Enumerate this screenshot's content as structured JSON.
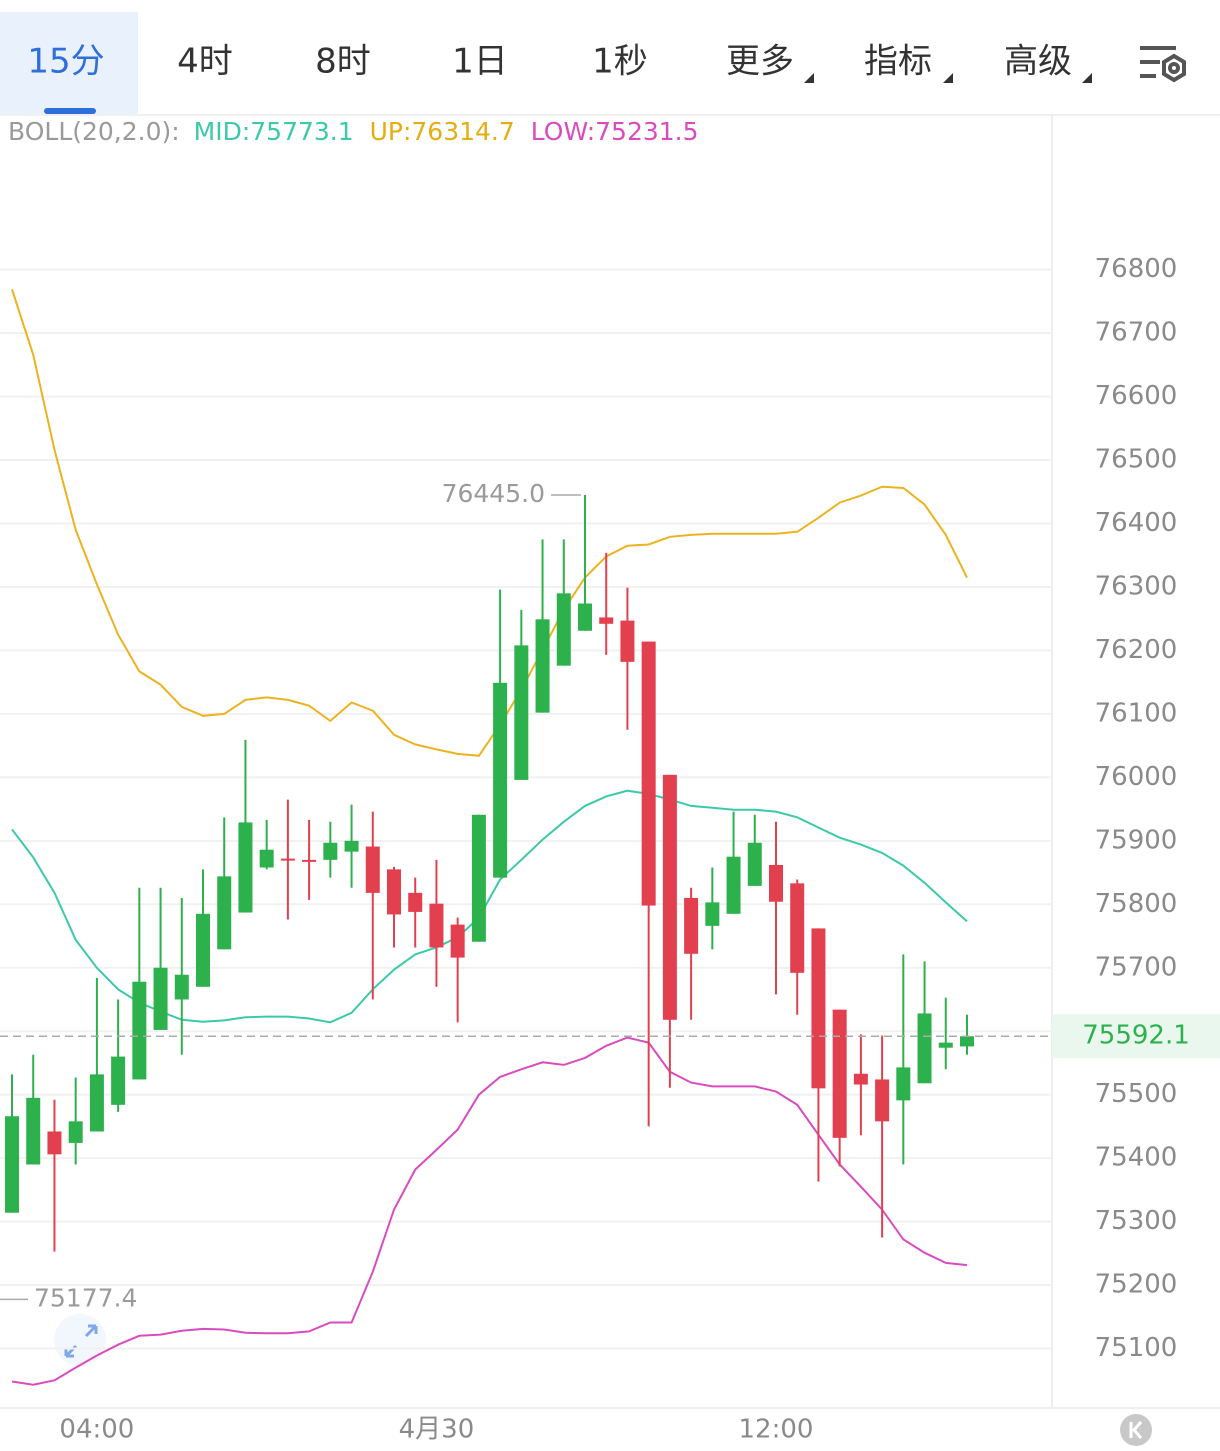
{
  "tabs": [
    "15分",
    "4时",
    "8时",
    "1日",
    "1秒",
    "更多",
    "指标",
    "高级"
  ],
  "indicator": {
    "label": "BOLL(20,2.0):",
    "mid": "MID:75773.1",
    "up": "UP:76314.7",
    "low": "LOW:75231.5"
  },
  "chart_data": {
    "type": "candlestick",
    "categories": [
      null,
      null,
      null,
      null,
      "04:00",
      null,
      null,
      null,
      null,
      null,
      null,
      null,
      null,
      null,
      null,
      null,
      null,
      null,
      null,
      null,
      "4月30",
      null,
      null,
      null,
      null,
      null,
      null,
      null,
      null,
      null,
      null,
      null,
      null,
      null,
      null,
      null,
      "12:00",
      null,
      null,
      null,
      null,
      null,
      null,
      null,
      null,
      null
    ],
    "open": [
      75314,
      75390,
      75442,
      75424,
      75442,
      75484,
      75524,
      75602,
      75650,
      75670,
      75729,
      75787,
      75858,
      75872,
      75870,
      75870,
      75883,
      75891,
      75855,
      75818,
      75801,
      75768,
      75741,
      75842,
      75996,
      76102,
      76176,
      76231,
      76252,
      76247,
      76214,
      76004,
      75810,
      75766,
      75785,
      75829,
      75862,
      75833,
      75762,
      75634,
      75533,
      75524,
      75491,
      75518,
      75574,
      75576
    ],
    "high": [
      75532,
      75563,
      75492,
      75527,
      75684,
      75650,
      75826,
      75826,
      75810,
      75855,
      75937,
      76059,
      75933,
      75965,
      75933,
      75930,
      75957,
      75946,
      75859,
      75842,
      75870,
      75779,
      75941,
      76296,
      76264,
      76375,
      76375,
      76445,
      76354,
      76299,
      76214,
      76004,
      75826,
      75858,
      75946,
      75941,
      75930,
      75839,
      75762,
      75634,
      75595,
      75593,
      75721,
      75710,
      75653,
      75626
    ],
    "low": [
      75314,
      75390,
      75253,
      75390,
      75442,
      75473,
      75524,
      75602,
      75563,
      75670,
      75729,
      75787,
      75855,
      75776,
      75807,
      75842,
      75826,
      75650,
      75732,
      75732,
      75670,
      75614,
      75741,
      75842,
      75996,
      76102,
      76176,
      76231,
      76193,
      76075,
      75450,
      75511,
      75618,
      75729,
      75785,
      75829,
      75658,
      75626,
      75363,
      75387,
      75436,
      75275,
      75390,
      75518,
      75540,
      75563
    ],
    "close": [
      75466,
      75495,
      75406,
      75458,
      75532,
      75560,
      75678,
      75700,
      75689,
      75785,
      75844,
      75929,
      75886,
      75869,
      75868,
      75897,
      75900,
      75818,
      75784,
      75788,
      75732,
      75716,
      75941,
      76149,
      76208,
      76249,
      76290,
      76274,
      76242,
      76182,
      75798,
      75618,
      75722,
      75803,
      75875,
      75897,
      75804,
      75692,
      75510,
      75432,
      75516,
      75458,
      75543,
      75628,
      75582,
      75592.1
    ],
    "up_color": "#2db14d",
    "down_color": "#e2404f",
    "bands": [
      {
        "color": "#ebb320",
        "values": [
          76769,
          76666,
          76516,
          76390,
          76304,
          76225,
          76167,
          76146,
          76111,
          76097,
          76100,
          76122,
          76126,
          76122,
          76113,
          76089,
          76118,
          76105,
          76067,
          76052,
          76044,
          76037,
          76034,
          76083,
          76138,
          76201,
          76264,
          76315,
          76348,
          76365,
          76367,
          76379,
          76382,
          76384,
          76384,
          76384,
          76384,
          76387,
          76409,
          76433,
          76444,
          76458,
          76456,
          76430,
          76382,
          76314.7
        ]
      },
      {
        "color": "#3cc9a9",
        "values": [
          75918,
          75874,
          75818,
          75744,
          75700,
          75666,
          75645,
          75631,
          75618,
          75615,
          75617,
          75622,
          75623,
          75623,
          75620,
          75614,
          75629,
          75666,
          75697,
          75721,
          75732,
          75748,
          75779,
          75839,
          75870,
          75902,
          75930,
          75955,
          75970,
          75979,
          75974,
          75965,
          75955,
          75952,
          75949,
          75949,
          75946,
          75937,
          75921,
          75905,
          75894,
          75881,
          75861,
          75834,
          75803,
          75773.1
        ]
      },
      {
        "color": "#d84cbe",
        "values": [
          75048,
          75043,
          75050,
          75070,
          75089,
          75106,
          75120,
          75122,
          75128,
          75131,
          75130,
          75125,
          75124,
          75124,
          75127,
          75141,
          75141,
          75221,
          75319,
          75382,
          75413,
          75445,
          75500,
          75528,
          75540,
          75551,
          75547,
          75558,
          75577,
          75590,
          75582,
          75536,
          75519,
          75513,
          75513,
          75513,
          75505,
          75484,
          75437,
          75390,
          75355,
          75319,
          75272,
          75251,
          75235,
          75231.5
        ]
      }
    ],
    "ylim": [
      75000,
      77050
    ],
    "yticks": [
      75100,
      75200,
      75300,
      75400,
      75500,
      75600,
      75700,
      75800,
      75900,
      76000,
      76100,
      76200,
      76300,
      76400,
      76500,
      76600,
      76700,
      76800
    ],
    "grid": true,
    "last_price": 75592.1,
    "high_marker": {
      "value": 76445,
      "label": "76445.0"
    },
    "low_marker": 75177.4
  }
}
